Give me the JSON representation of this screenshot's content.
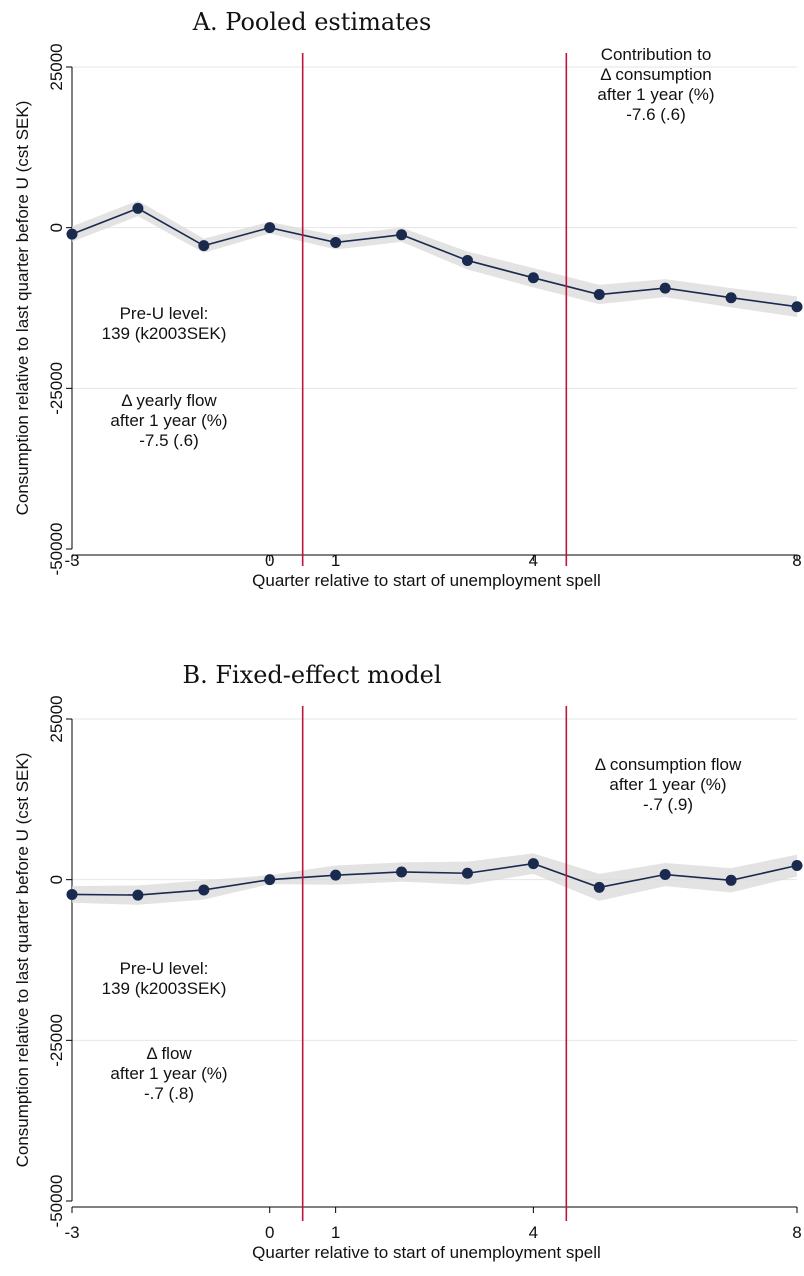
{
  "chart_data": [
    {
      "type": "line",
      "title": "A. Pooled estimates",
      "xlabel": "Quarter relative to start of unemployment spell",
      "ylabel": "Consumption relative to last quarter before U (cst SEK)",
      "x": [
        -3,
        -2,
        -1,
        0,
        1,
        2,
        3,
        4,
        5,
        6,
        7,
        8
      ],
      "xlim": [
        -3,
        8
      ],
      "ylim": [
        -50000,
        25000
      ],
      "xticks": [
        -3,
        0,
        1,
        4,
        8
      ],
      "yticks": [
        -50000,
        -25000,
        0,
        25000
      ],
      "xtick_labels": [
        "-3",
        "0",
        "1",
        "4",
        "8"
      ],
      "ytick_labels": [
        "-50000",
        "-25000",
        "0",
        "25000"
      ],
      "grid": "horizontal",
      "vlines": [
        0.5,
        4.5
      ],
      "series": [
        {
          "values": [
            -1000,
            3000,
            -2800,
            0,
            -2300,
            -1100,
            -5100,
            -7800,
            -10400,
            -9400,
            -10900,
            -12300
          ],
          "ci_lower": [
            -2200,
            1800,
            -3900,
            -900,
            -3400,
            -2200,
            -6500,
            -9300,
            -11900,
            -10800,
            -12400,
            -13900
          ],
          "ci_upper": [
            200,
            4200,
            -1700,
            900,
            -1200,
            0,
            -3700,
            -6300,
            -8900,
            -8000,
            -9400,
            -10700
          ],
          "color": "#1a2a4f"
        }
      ],
      "annotations": [
        {
          "lines": [
            "Contribution to",
            "Δ consumption",
            "after 1 year (%)",
            "-7.6 (.6)"
          ],
          "position": "top-right"
        },
        {
          "lines": [
            "Pre-U level:",
            "139 (k2003SEK)"
          ],
          "position": "left"
        },
        {
          "lines": [
            "Δ yearly flow",
            "after 1 year (%)",
            "-7.5 (.6)"
          ],
          "position": "bottom-left"
        }
      ]
    },
    {
      "type": "line",
      "title": "B. Fixed-effect model",
      "xlabel": "Quarter relative to start of unemployment spell",
      "ylabel": "Consumption relative to last quarter before U (cst SEK)",
      "x": [
        -3,
        -2,
        -1,
        0,
        1,
        2,
        3,
        4,
        5,
        6,
        7,
        8
      ],
      "xlim": [
        -3,
        8
      ],
      "ylim": [
        -50000,
        25000
      ],
      "xticks": [
        -3,
        0,
        1,
        4,
        8
      ],
      "yticks": [
        -50000,
        -25000,
        0,
        25000
      ],
      "xtick_labels": [
        "-3",
        "0",
        "1",
        "4",
        "8"
      ],
      "ytick_labels": [
        "-50000",
        "-25000",
        "0",
        "25000"
      ],
      "grid": "horizontal",
      "vlines": [
        0.5,
        4.5
      ],
      "series": [
        {
          "values": [
            -2300,
            -2400,
            -1600,
            0,
            700,
            1200,
            1000,
            2500,
            -1200,
            800,
            -100,
            2200
          ],
          "ci_lower": [
            -3600,
            -3900,
            -3100,
            -700,
            -800,
            -300,
            -800,
            900,
            -3300,
            -1000,
            -2000,
            500
          ],
          "ci_upper": [
            -1000,
            -900,
            -100,
            700,
            2200,
            2700,
            2800,
            4100,
            900,
            2600,
            1800,
            3900
          ],
          "color": "#1a2a4f"
        }
      ],
      "annotations": [
        {
          "lines": [
            "Δ consumption flow",
            "after 1 year (%)",
            "-.7 (.9)"
          ],
          "position": "top-right"
        },
        {
          "lines": [
            "Pre-U level:",
            "139 (k2003SEK)"
          ],
          "position": "left"
        },
        {
          "lines": [
            "Δ flow",
            "after 1 year (%)",
            "-.7 (.8)"
          ],
          "position": "bottom-left"
        }
      ]
    }
  ]
}
